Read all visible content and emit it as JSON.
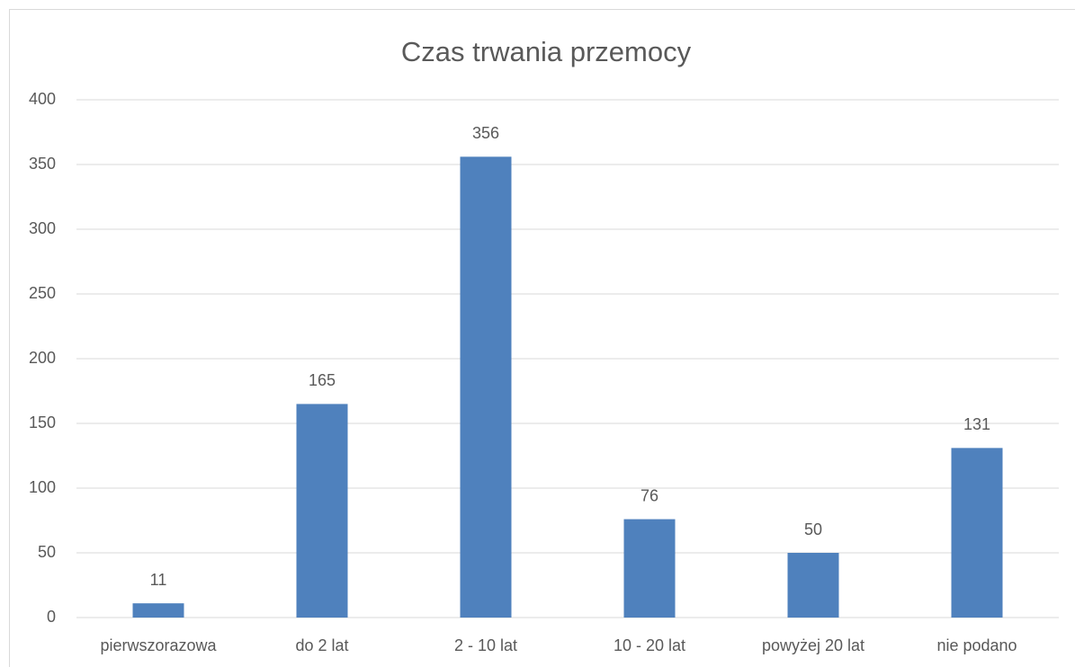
{
  "chart_data": {
    "type": "bar",
    "title": "Czas trwania przemocy",
    "categories": [
      "pierwszorazowa",
      "do 2 lat",
      "2 - 10 lat",
      "10 - 20 lat",
      "powyżej 20 lat",
      "nie podano"
    ],
    "values": [
      11,
      165,
      356,
      76,
      50,
      131
    ],
    "color": "#4f81bd",
    "ylim": [
      0,
      400
    ],
    "yticks": [
      0,
      50,
      100,
      150,
      200,
      250,
      300,
      350,
      400
    ],
    "grid": true,
    "data_labels": true
  }
}
